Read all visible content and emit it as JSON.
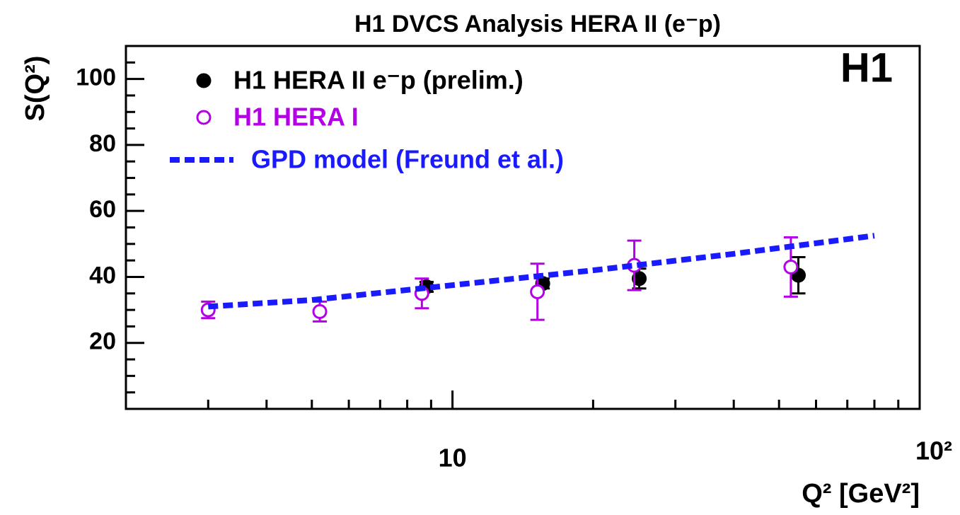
{
  "chart_data": {
    "type": "scatter",
    "title": "H1 DVCS Analysis HERA II (e⁻p)",
    "y_label": "S(Q²)",
    "x_label": "Q² [GeV²]",
    "annotation": "H1",
    "log_x": true,
    "xlim": [
      2,
      100
    ],
    "ylim": [
      0,
      110
    ],
    "xticks": [
      10,
      {
        "value": 100,
        "label": "10²"
      }
    ],
    "xminorticks": [
      3,
      4,
      5,
      6,
      7,
      8,
      9,
      20,
      30,
      40,
      50,
      60,
      70,
      80,
      90
    ],
    "yticks": [
      20,
      40,
      60,
      80,
      100
    ],
    "yminorticks": [
      5,
      10,
      15,
      25,
      30,
      35,
      45,
      50,
      55,
      65,
      70,
      75,
      85,
      90,
      95,
      105
    ],
    "legend": "top-left",
    "series": [
      {
        "name": "H1 HERA II e⁻p (prelim.)",
        "color": "#000000",
        "marker": "filled",
        "x": [
          8.8,
          15.6,
          25.1,
          55
        ],
        "values": [
          37,
          38,
          39.5,
          40.5
        ],
        "yerr": [
          1.5,
          1.5,
          3,
          5.5
        ]
      },
      {
        "name": "H1 HERA I",
        "color": "#b400e6",
        "marker": "open",
        "x": [
          3,
          5.2,
          8.6,
          15.2,
          24.5,
          53
        ],
        "values": [
          30,
          29.5,
          35,
          35.5,
          43.5,
          43
        ],
        "yerr": [
          2.5,
          3,
          4.5,
          8.5,
          7.5,
          9
        ]
      },
      {
        "name": "GPD model (Freund et al.)",
        "color": "#1a1aff",
        "marker": "dashed-line",
        "x": [
          3,
          5,
          10,
          20,
          40,
          80
        ],
        "values": [
          31,
          33,
          37.5,
          42,
          47,
          52.5
        ]
      }
    ]
  }
}
